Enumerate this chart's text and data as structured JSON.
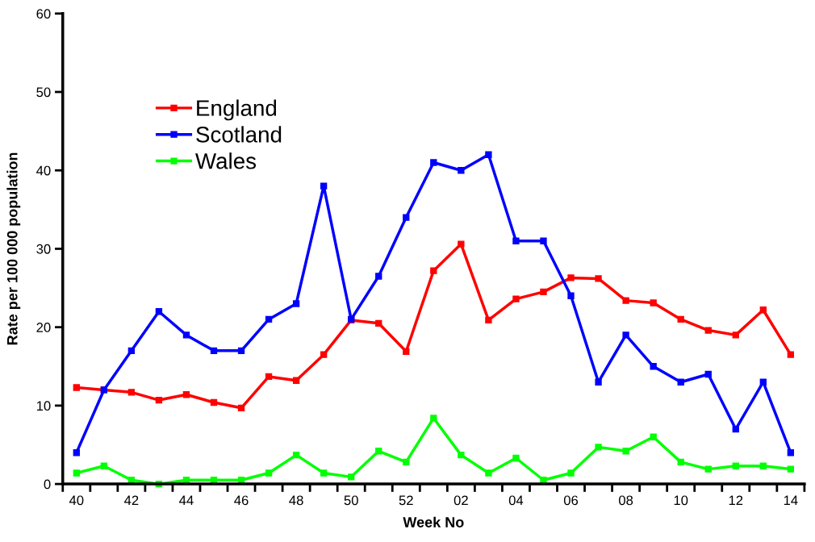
{
  "chart_data": {
    "type": "line",
    "xlabel": "Week No",
    "ylabel": "Rate per 100 000 population",
    "categories": [
      "40",
      null,
      "42",
      null,
      "44",
      null,
      "46",
      null,
      "48",
      null,
      "50",
      null,
      "52",
      null,
      "02",
      null,
      "04",
      null,
      "06",
      null,
      "08",
      null,
      "10",
      null,
      "12",
      null,
      "14"
    ],
    "series": [
      {
        "name": "England",
        "color": "#ff0000",
        "values": [
          12.3,
          12.0,
          11.7,
          10.7,
          11.4,
          10.4,
          9.7,
          13.7,
          13.2,
          16.5,
          20.9,
          20.5,
          16.9,
          27.2,
          30.6,
          20.9,
          23.6,
          24.5,
          26.3,
          26.2,
          23.4,
          23.1,
          21.0,
          19.6,
          19.0,
          22.2,
          16.5
        ]
      },
      {
        "name": "Scotland",
        "color": "#0000ff",
        "values": [
          4,
          12,
          17,
          22,
          19,
          17,
          17,
          21,
          23,
          38,
          21,
          26.5,
          34,
          41,
          40,
          42,
          31,
          31,
          24,
          13,
          19,
          15,
          13,
          14,
          7,
          13,
          4
        ]
      },
      {
        "name": "Wales",
        "color": "#00ff00",
        "values": [
          1.4,
          2.3,
          0.5,
          0,
          0.5,
          0.5,
          0.5,
          1.4,
          3.7,
          1.4,
          0.9,
          4.2,
          2.8,
          8.4,
          3.7,
          1.4,
          3.3,
          0.5,
          1.4,
          4.7,
          4.2,
          6.0,
          2.8,
          1.9,
          2.3,
          2.3,
          1.9
        ]
      }
    ],
    "ylim": [
      0,
      60
    ],
    "yticks": [
      0,
      10,
      20,
      30,
      40,
      50,
      60
    ],
    "grid": false,
    "legend": "top left",
    "marker": "square",
    "line_style": "solid"
  }
}
